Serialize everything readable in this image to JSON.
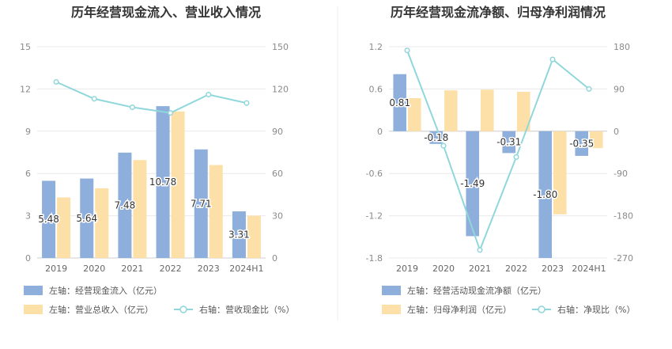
{
  "chart_data": [
    {
      "type": "bar",
      "title": "历年经营现金流入、营业收入情况",
      "categories": [
        "2019",
        "2020",
        "2021",
        "2022",
        "2023",
        "2024H1"
      ],
      "left_axis": {
        "ylim": [
          0,
          15
        ],
        "ticks": [
          0,
          3,
          6,
          9,
          12,
          15
        ]
      },
      "right_axis": {
        "ylim": [
          0,
          150
        ],
        "ticks": [
          0,
          30,
          60,
          90,
          120,
          150
        ]
      },
      "series": [
        {
          "name": "左轴：经营现金流入（亿元）",
          "type": "bar",
          "axis": "left",
          "color": "#8eaedc",
          "values": [
            5.48,
            5.64,
            7.48,
            10.78,
            7.71,
            3.31
          ],
          "labels": [
            "5.48",
            "5.64",
            "7.48",
            "10.78",
            "7.71",
            "3.31"
          ]
        },
        {
          "name": "左轴：营业总收入（亿元）",
          "type": "bar",
          "axis": "left",
          "color": "#fddfa8",
          "values": [
            4.3,
            4.95,
            6.95,
            10.4,
            6.6,
            3.0
          ]
        },
        {
          "name": "右轴：营收现金比（%）",
          "type": "line",
          "axis": "right",
          "color": "#8fd7db",
          "values": [
            125,
            113,
            107,
            103,
            116,
            110
          ]
        }
      ],
      "legend_position": "bottom",
      "grid": true
    },
    {
      "type": "bar",
      "title": "历年经营现金流净额、归母净利润情况",
      "categories": [
        "2019",
        "2020",
        "2021",
        "2022",
        "2023",
        "2024H1"
      ],
      "left_axis": {
        "ylim": [
          -1.8,
          1.2
        ],
        "ticks": [
          1.2,
          0.6,
          0,
          -0.6,
          -1.2,
          -1.8
        ]
      },
      "right_axis": {
        "ylim": [
          -270,
          180
        ],
        "ticks": [
          180,
          90,
          0,
          -90,
          -180,
          -270
        ]
      },
      "series": [
        {
          "name": "左轴：经营活动现金流净额（亿元）",
          "type": "bar",
          "axis": "left",
          "color": "#8eaedc",
          "values": [
            0.81,
            -0.18,
            -1.49,
            -0.31,
            -1.8,
            -0.35
          ],
          "labels": [
            "0.81",
            "-0.18",
            "-1.49",
            "-0.31",
            "-1.80",
            "-0.35"
          ]
        },
        {
          "name": "左轴：归母净利润（亿元）",
          "type": "bar",
          "axis": "left",
          "color": "#fddfa8",
          "values": [
            0.47,
            0.58,
            0.59,
            0.56,
            -1.18,
            -0.24
          ]
        },
        {
          "name": "右轴：净现比（%）",
          "type": "line",
          "axis": "right",
          "color": "#8fd7db",
          "values": [
            172,
            -31,
            -253,
            -55,
            153,
            90
          ]
        }
      ],
      "legend_position": "bottom",
      "grid": true
    }
  ]
}
